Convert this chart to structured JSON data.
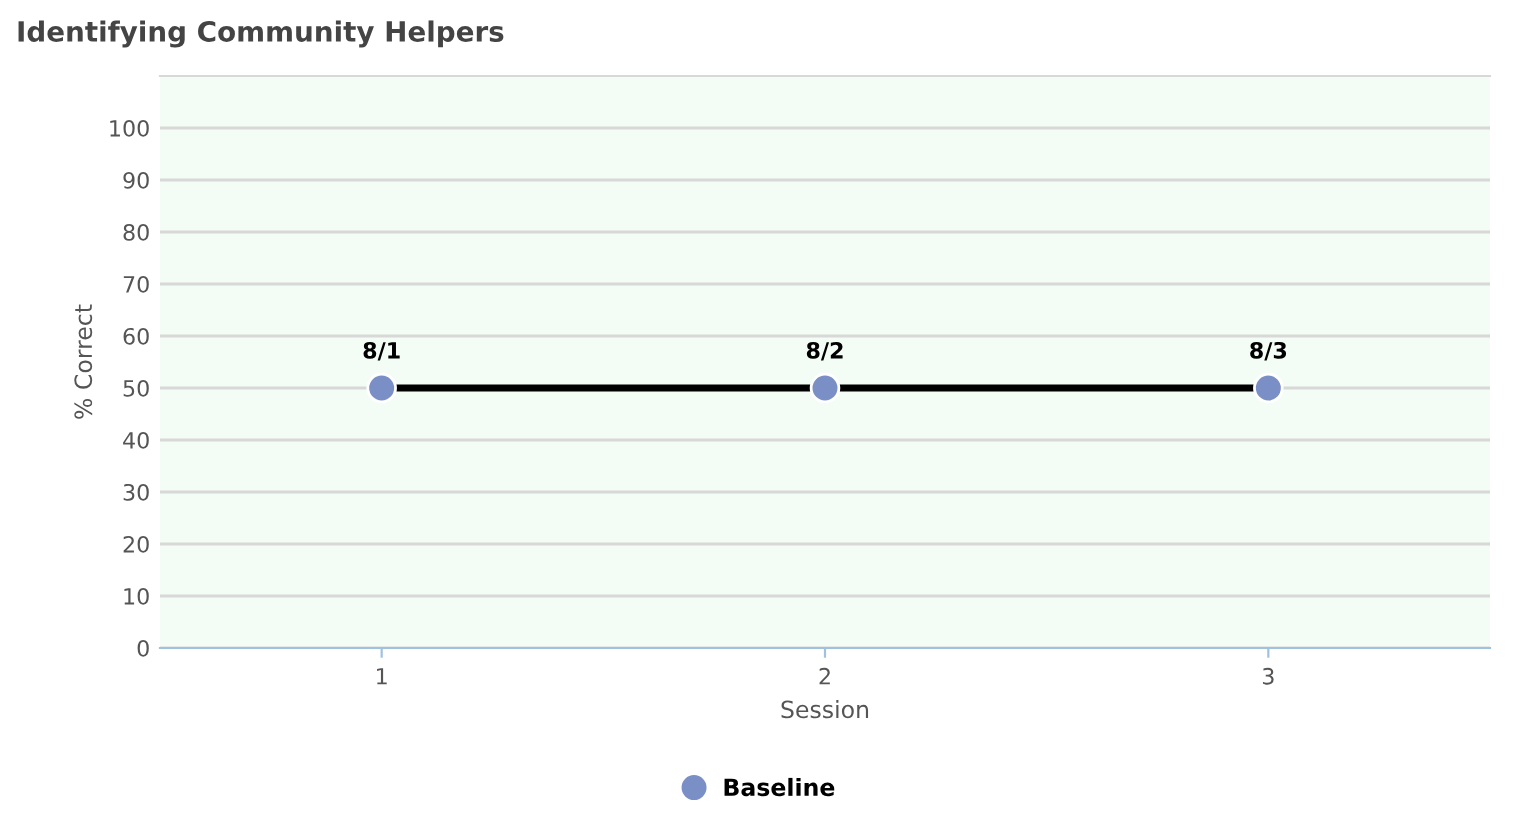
{
  "chart_data": {
    "type": "line",
    "title": "Identifying Community Helpers",
    "xlabel": "Session",
    "ylabel": "% Correct",
    "x": [
      1,
      2,
      3
    ],
    "series": [
      {
        "name": "Baseline",
        "color": "#000000",
        "colors": [
          "#7b8fc7",
          "#7b8fc7",
          "#7b8fc7"
        ],
        "values": [
          50,
          50,
          50
        ]
      }
    ],
    "annotations": [
      {
        "text": "8/1",
        "x": 1,
        "y": 50
      },
      {
        "text": "8/2",
        "x": 2,
        "y": 50
      },
      {
        "text": "8/3",
        "x": 3,
        "y": 50
      }
    ],
    "xlim": [
      0.5,
      3.5
    ],
    "xticks": [
      1,
      2,
      3
    ],
    "ylim": [
      0,
      110
    ],
    "yticks": [
      0,
      10,
      20,
      30,
      40,
      50,
      60,
      70,
      80,
      90,
      100
    ],
    "grid": "y",
    "legend": "bottom",
    "marker": "circle",
    "line_style": "solid"
  }
}
